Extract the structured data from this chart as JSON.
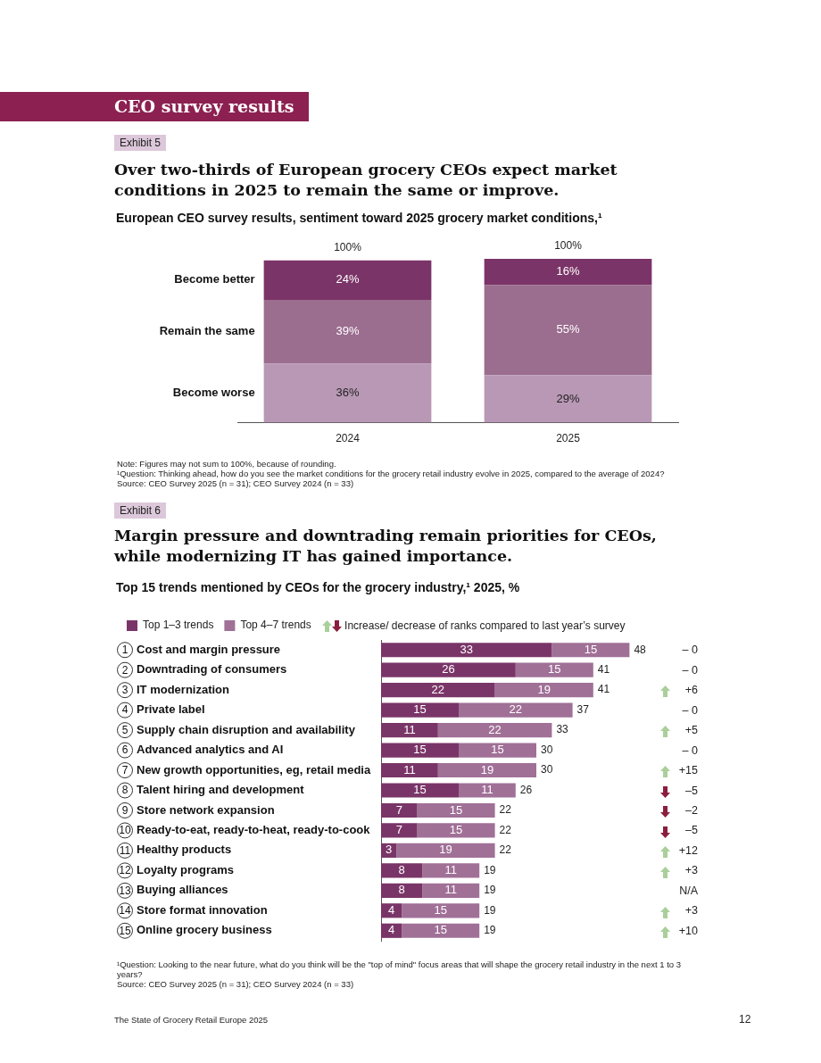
{
  "chart_data": [
    {
      "type": "bar",
      "title": "Over two-thirds of European grocery CEOs expect market conditions in 2025 to remain the same or improve.",
      "subtitle": "European CEO survey results, sentiment toward 2025 grocery market conditions,¹",
      "categories": [
        "2024",
        "2025"
      ],
      "stacked": true,
      "tick_labels": "x",
      "series": [
        {
          "name": "Become worse",
          "color": "#b998b6",
          "values": [
            36,
            29
          ],
          "value_labels": [
            "36%",
            "29%"
          ]
        },
        {
          "name": "Remain the same",
          "color": "#9b6d8f",
          "values": [
            39,
            55
          ],
          "value_labels": [
            "39%",
            "55%"
          ]
        },
        {
          "name": "Become better",
          "color": "#7b3468",
          "values": [
            24,
            16
          ],
          "value_labels": [
            "24%",
            "16%"
          ]
        }
      ],
      "totals": [
        "100%",
        "100%"
      ],
      "annotations": [
        "CEO survey results",
        "Exhibit 5",
        "Note: Figures may not sum to 100%, because of rounding.",
        "¹Question: Thinking ahead, how do you see the market conditions for the grocery retail industry evolve in 2025, compared to the average of 2024?",
        "Source: CEO Survey 2025 (n = 31); CEO Survey 2024 (n = 33)"
      ]
    },
    {
      "type": "bar",
      "orientation": "horizontal",
      "stacked": true,
      "title": "Margin pressure and downtrading remain priorities for CEOs, while modernizing IT has gained importance.",
      "subtitle": "Top 15 trends mentioned by CEOs for the grocery industry,¹ 2025, %",
      "tick_labels": "y",
      "legend": "top",
      "data_labels": true,
      "categories": [
        "1 Cost and margin pressure",
        "2 Downtrading of consumers",
        "3 IT modernization",
        "4 Private label",
        "5 Supply chain disruption and availability",
        "6 Advanced analytics and AI",
        "7 New growth opportunities, eg, retail media",
        "8 Talent hiring and development",
        "9 Store network expansion",
        "10 Ready-to-eat, ready-to-heat, ready-to-cook",
        "11 Healthy products",
        "12 Loyalty programs",
        "13 Buying alliances",
        "14 Store format innovation",
        "15 Online grocery business"
      ],
      "series": [
        {
          "name": "Top 1–3 trends",
          "color": "#7a3568",
          "values": [
            33,
            26,
            22,
            15,
            11,
            15,
            11,
            15,
            7,
            7,
            3,
            8,
            8,
            4,
            4
          ]
        },
        {
          "name": "Top 4–7 trends",
          "color": "#a07097",
          "values": [
            15,
            15,
            19,
            22,
            22,
            15,
            19,
            11,
            15,
            15,
            19,
            11,
            11,
            15,
            15
          ]
        }
      ],
      "totals": [
        "48",
        "41",
        "41",
        "37",
        "33",
        "30",
        "30",
        "26",
        "22",
        "22",
        "22",
        "19",
        "19",
        "19",
        "19"
      ],
      "annotations": [
        "Exhibit 6",
        "Increase/ decrease of ranks compared to last year’s survey",
        "– 0",
        "– 0",
        "+6",
        "– 0",
        "+5",
        "– 0",
        "+15",
        "–5",
        "–2",
        "–5",
        "+12",
        "+3",
        "N/A",
        "+3",
        "+10",
        "¹Question: Looking to the near future, what do you think will be the \"top of mind\" focus areas that will shape the grocery retail industry in the next 1 to 3 years?",
        "Source: CEO Survey 2025 (n = 31); CEO Survey 2024 (n = 33)",
        "The State of Grocery Retail Europe 2025",
        "12"
      ]
    }
  ]
}
